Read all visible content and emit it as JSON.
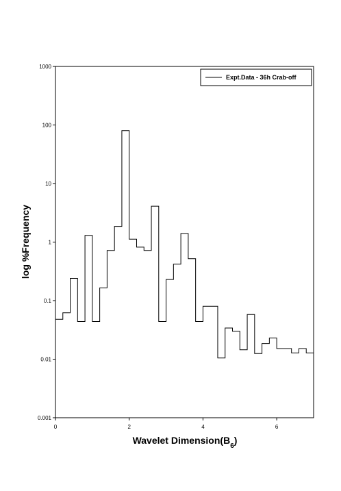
{
  "chart_data": {
    "type": "line",
    "style": "step",
    "title": "",
    "xlabel": "Wavelet Dimension(B",
    "xlabel_subscript": "6",
    "xlabel_suffix": ")",
    "ylabel": "log %Frequency",
    "xlim": [
      0,
      7
    ],
    "ylim": [
      0.001,
      1000
    ],
    "yscale": "log",
    "x_ticks": [
      "0",
      "2",
      "4",
      "6"
    ],
    "y_ticks": [
      "0.001",
      "0.01",
      "0.1",
      "1",
      "10",
      "100",
      "1000"
    ],
    "grid": false,
    "legend_position": "top-right",
    "series": [
      {
        "name": "Expt.Data - 36h Crab-off",
        "color": "#000000",
        "bin_edges": [
          0,
          0.2,
          0.4,
          0.6,
          0.8,
          1.0,
          1.2,
          1.4,
          1.6,
          1.8,
          2.0,
          2.2,
          2.4,
          2.6,
          2.8,
          3.0,
          3.2,
          3.4,
          3.6,
          3.8,
          4.0,
          4.2,
          4.4,
          4.6,
          4.8,
          5.0,
          5.2,
          5.4,
          5.6,
          5.8,
          6.0,
          6.2,
          6.4,
          6.6,
          6.8,
          7.0
        ],
        "values": [
          0.048,
          0.062,
          0.24,
          0.044,
          1.3,
          0.044,
          0.165,
          0.72,
          1.85,
          80,
          1.12,
          0.82,
          0.72,
          4.1,
          0.044,
          0.23,
          0.42,
          1.4,
          0.52,
          0.044,
          0.08,
          0.08,
          0.0105,
          0.034,
          0.03,
          0.0145,
          0.058,
          0.0125,
          0.0185,
          0.023,
          0.0152,
          0.0152,
          0.0128,
          0.0152,
          0.0128
        ],
        "right_edge_value": 0.022
      }
    ]
  }
}
